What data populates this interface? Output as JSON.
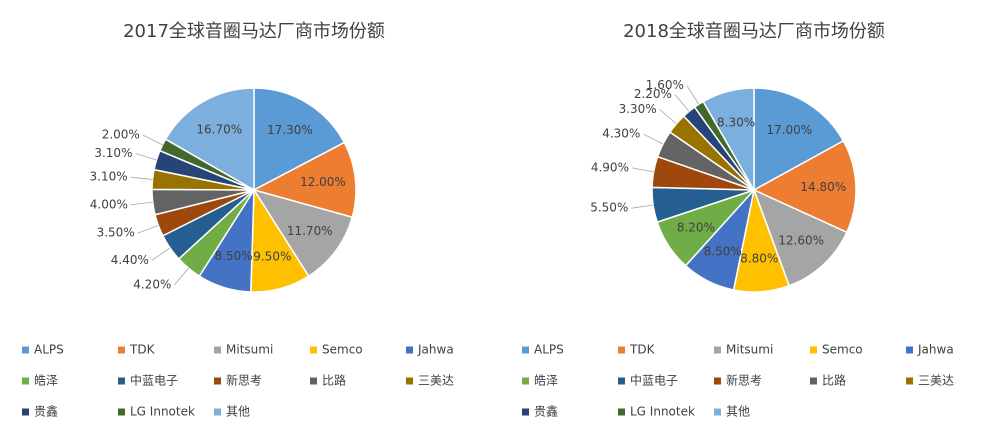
{
  "chart_data": [
    {
      "type": "pie",
      "title": "2017全球音圈马达厂商市场份额",
      "categories": [
        "ALPS",
        "TDK",
        "Mitsumi",
        "Semco",
        "Jahwa",
        "皓泽",
        "中蓝电子",
        "新思考",
        "比路",
        "三美达",
        "贵鑫",
        "LG Innotek",
        "其他"
      ],
      "values": [
        17.3,
        12.0,
        11.7,
        9.5,
        8.5,
        4.2,
        4.4,
        3.5,
        4.0,
        3.1,
        3.1,
        2.0,
        16.7
      ],
      "value_labels": [
        "17.30%",
        "12.00%",
        "11.70%",
        "9.50%",
        "8.50%",
        "4.20%",
        "4.40%",
        "3.50%",
        "4.00%",
        "3.10%",
        "3.10%",
        "2.00%",
        "16.70%"
      ],
      "colors": [
        "#5b9bd5",
        "#ed7d31",
        "#a5a5a5",
        "#ffc000",
        "#4472c4",
        "#70ad47",
        "#255e91",
        "#9e480e",
        "#636363",
        "#997300",
        "#264478",
        "#43682b",
        "#7cafdd"
      ]
    },
    {
      "type": "pie",
      "title": "2018全球音圈马达厂商市场份额",
      "categories": [
        "ALPS",
        "TDK",
        "Mitsumi",
        "Semco",
        "Jahwa",
        "皓泽",
        "中蓝电子",
        "新思考",
        "比路",
        "三美达",
        "贵鑫",
        "LG Innotek",
        "其他"
      ],
      "values": [
        17.0,
        14.8,
        12.6,
        8.8,
        8.5,
        8.2,
        5.5,
        4.9,
        4.3,
        3.3,
        2.2,
        1.6,
        8.3
      ],
      "value_labels": [
        "17.00%",
        "14.80%",
        "12.60%",
        "8.80%",
        "8.50%",
        "8.20%",
        "5.50%",
        "4.90%",
        "4.30%",
        "3.30%",
        "2.20%",
        "1.60%",
        "8.30%"
      ],
      "colors": [
        "#5b9bd5",
        "#ed7d31",
        "#a5a5a5",
        "#ffc000",
        "#4472c4",
        "#70ad47",
        "#255e91",
        "#9e480e",
        "#636363",
        "#997300",
        "#264478",
        "#43682b",
        "#7cafdd"
      ]
    }
  ]
}
